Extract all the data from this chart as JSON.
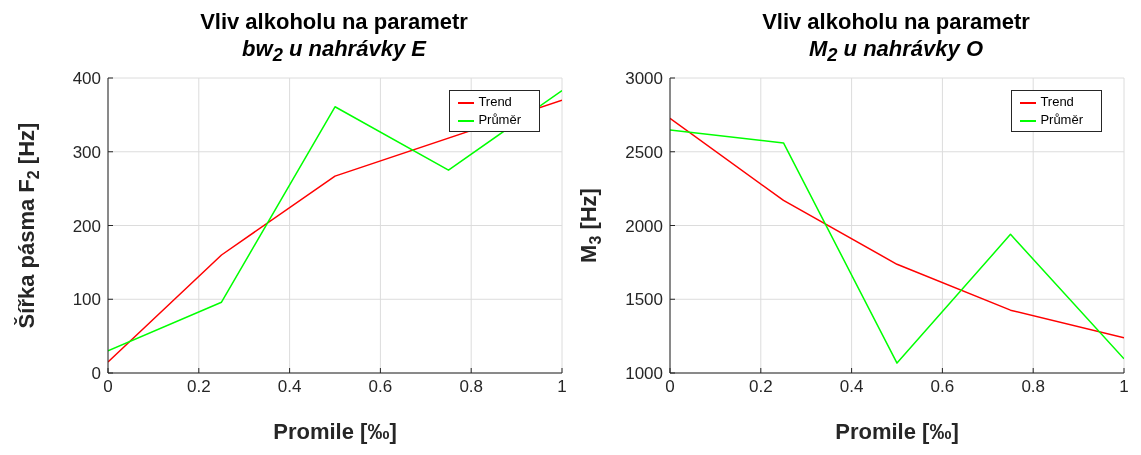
{
  "chart_data": [
    {
      "type": "line",
      "title": "Vliv alkoholu na parametr",
      "subtitle": "bw$_{2}$ u nahrávky E",
      "xlabel": "Promile [‰]",
      "ylabel": "Šířka pásma  F$_{2}$ [Hz]",
      "x": [
        0,
        0.25,
        0.5,
        0.75,
        1
      ],
      "series": [
        {
          "name": "Trend",
          "color": "#ff0000",
          "values": [
            15,
            160,
            267,
            null,
            370
          ]
        },
        {
          "name": "Průměr",
          "color": "#00ff00",
          "values": [
            30,
            96,
            361,
            275,
            383
          ]
        }
      ],
      "xlim": [
        0,
        1
      ],
      "xticks": [
        0,
        0.2,
        0.4,
        0.6,
        0.8,
        1
      ],
      "ylim": [
        0,
        400
      ],
      "yticks": [
        0,
        100,
        200,
        300,
        400
      ],
      "grid": true,
      "legend": "top right",
      "marker": "none",
      "line_style": "solid"
    },
    {
      "type": "line",
      "title": "Vliv alkoholu na parametr",
      "subtitle": "M$_{2}$ u nahrávky O",
      "xlabel": "Promile [‰]",
      "ylabel": "M$_{3}$ [Hz]",
      "x": [
        0,
        0.25,
        0.5,
        0.75,
        1
      ],
      "series": [
        {
          "name": "Trend",
          "color": "#ff0000",
          "values": [
            2727,
            2170,
            1737,
            1426,
            1238
          ]
        },
        {
          "name": "Průměr",
          "color": "#00ff00",
          "values": [
            2647,
            2560,
            1067,
            1940,
            1096
          ]
        }
      ],
      "xlim": [
        0,
        1
      ],
      "xticks": [
        0,
        0.2,
        0.4,
        0.6,
        0.8,
        1
      ],
      "ylim": [
        1000,
        3000
      ],
      "yticks": [
        1000,
        1500,
        2000,
        2500,
        3000
      ],
      "grid": true,
      "legend": "top right",
      "marker": "none",
      "line_style": "solid"
    }
  ]
}
